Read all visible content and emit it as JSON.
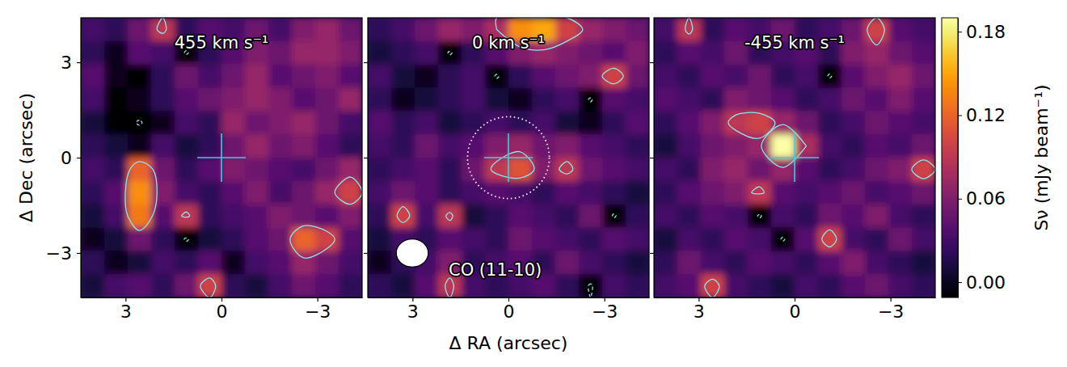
{
  "chart_data": {
    "type": "heatmap",
    "xlabel": "Δ RA (arcsec)",
    "ylabel": "Δ Dec (arcsec)",
    "xlim": [
      4.4,
      -4.4
    ],
    "ylim": [
      -4.4,
      4.4
    ],
    "xticks": [
      3,
      0,
      {
        "value": -3,
        "label": "−3"
      }
    ],
    "yticks": [
      {
        "value": -3,
        "label": "−3"
      },
      0,
      3
    ],
    "x": [
      4.033,
      3.3,
      2.567,
      1.833,
      1.1,
      0.367,
      -0.367,
      -1.1,
      -1.833,
      -2.567,
      -3.3,
      -4.033
    ],
    "y": [
      4.033,
      3.3,
      2.567,
      1.833,
      1.1,
      0.367,
      -0.367,
      -1.1,
      -1.833,
      -2.567,
      -3.3,
      -4.033
    ],
    "colorbar": {
      "label": "Sν (mJy beam⁻¹)",
      "lim": [
        -0.011,
        0.19
      ],
      "ticks": [
        {
          "value": 0,
          "label": "0.00"
        },
        {
          "value": 0.06,
          "label": "0.06"
        },
        {
          "value": 0.12,
          "label": "0.12"
        },
        {
          "value": 0.18,
          "label": "0.18"
        }
      ]
    },
    "contours": [
      {
        "level": 0.08,
        "line_style": "solid",
        "color": "#8fe3ee"
      },
      {
        "level": -0.08,
        "line_style": "dashed",
        "color": "#8fe3ee"
      }
    ],
    "crosshair": {
      "ra": 0,
      "dec": 0,
      "size": 0.76,
      "color": "#30d5e3"
    },
    "panels": [
      {
        "title": "455 km s⁻¹",
        "cells": [
          [
            0.03,
            0.02,
            0.05,
            0.09,
            0.02,
            0.04,
            0.03,
            0.05,
            0.03,
            0.06,
            0.07,
            0.05
          ],
          [
            0.02,
            0.0,
            0.04,
            0.03,
            -0.09,
            0.02,
            0.04,
            0.06,
            0.05,
            0.07,
            0.07,
            0.06
          ],
          [
            0.04,
            0.0,
            -0.02,
            0.02,
            0.05,
            0.03,
            0.05,
            0.07,
            0.04,
            0.05,
            0.06,
            0.04
          ],
          [
            0.03,
            -0.02,
            0.0,
            0.02,
            0.04,
            0.05,
            0.06,
            0.07,
            0.06,
            0.04,
            0.05,
            0.07
          ],
          [
            0.01,
            -0.02,
            -0.09,
            0.0,
            0.03,
            0.02,
            0.07,
            0.05,
            0.06,
            0.07,
            0.05,
            0.03
          ],
          [
            0.02,
            0.01,
            0.0,
            0.03,
            0.01,
            0.02,
            0.05,
            0.07,
            0.05,
            0.06,
            0.04,
            0.02
          ],
          [
            0.03,
            0.02,
            0.12,
            0.05,
            0.02,
            0.04,
            0.06,
            0.05,
            0.04,
            0.03,
            0.05,
            0.07
          ],
          [
            0.02,
            0.04,
            0.14,
            0.06,
            0.03,
            0.02,
            0.04,
            0.06,
            0.03,
            0.05,
            0.07,
            0.1
          ],
          [
            0.01,
            0.03,
            0.13,
            0.04,
            0.09,
            0.02,
            0.03,
            0.04,
            0.06,
            0.05,
            0.04,
            0.06
          ],
          [
            0.0,
            0.01,
            0.05,
            0.02,
            -0.09,
            0.01,
            0.02,
            0.04,
            0.05,
            0.12,
            0.1,
            0.04
          ],
          [
            0.02,
            0.0,
            0.01,
            0.03,
            0.02,
            0.04,
            0.0,
            0.03,
            0.04,
            0.07,
            0.05,
            0.03
          ],
          [
            0.01,
            0.03,
            0.04,
            0.02,
            0.05,
            0.1,
            0.02,
            0.01,
            0.03,
            0.05,
            0.04,
            0.02
          ]
        ]
      },
      {
        "title": "0 km s⁻¹",
        "annotation": "CO (11-10)",
        "aperture": {
          "ra": 0,
          "dec": 0,
          "radius": 1.28
        },
        "beam": {
          "width": 1.0,
          "height": 0.88
        },
        "cells": [
          [
            0.02,
            0.03,
            0.05,
            0.07,
            0.06,
            0.08,
            0.14,
            0.15,
            0.1,
            0.07,
            0.06,
            0.05
          ],
          [
            0.01,
            0.02,
            0.03,
            -0.09,
            0.02,
            0.04,
            0.06,
            0.07,
            0.06,
            0.05,
            0.04,
            0.06
          ],
          [
            0.03,
            0.01,
            0.0,
            0.02,
            0.03,
            -0.09,
            0.02,
            0.04,
            0.05,
            0.06,
            0.1,
            0.05
          ],
          [
            0.02,
            0.0,
            0.01,
            0.02,
            0.03,
            0.01,
            0.0,
            0.02,
            0.03,
            -0.09,
            0.04,
            0.03
          ],
          [
            0.04,
            0.02,
            0.03,
            0.01,
            0.02,
            0.03,
            0.02,
            0.03,
            0.01,
            0.0,
            0.02,
            0.04
          ],
          [
            0.03,
            0.02,
            0.05,
            0.03,
            0.04,
            0.06,
            0.07,
            0.05,
            0.06,
            0.04,
            0.03,
            0.02
          ],
          [
            0.02,
            0.03,
            0.04,
            0.02,
            0.05,
            0.09,
            0.11,
            0.06,
            0.09,
            0.05,
            0.04,
            0.03
          ],
          [
            0.03,
            0.05,
            0.04,
            0.02,
            0.03,
            0.04,
            0.03,
            0.02,
            0.04,
            0.03,
            0.02,
            0.01
          ],
          [
            0.02,
            0.1,
            0.03,
            0.09,
            0.01,
            0.02,
            0.04,
            0.03,
            0.02,
            0.05,
            -0.09,
            0.02
          ],
          [
            0.01,
            0.03,
            0.02,
            0.04,
            0.03,
            0.02,
            0.05,
            0.04,
            0.03,
            0.02,
            0.04,
            0.03
          ],
          [
            0.0,
            0.02,
            0.03,
            0.06,
            0.02,
            0.03,
            0.04,
            0.02,
            0.05,
            0.03,
            0.02,
            0.01
          ],
          [
            0.02,
            0.01,
            0.04,
            0.09,
            0.03,
            0.02,
            0.03,
            0.04,
            0.02,
            -0.09,
            0.03,
            0.02
          ]
        ]
      },
      {
        "title": "-455 km s⁻¹",
        "cells": [
          [
            0.03,
            0.09,
            0.02,
            0.04,
            0.03,
            0.05,
            0.02,
            0.03,
            0.05,
            0.1,
            0.04,
            0.03
          ],
          [
            0.02,
            0.04,
            0.03,
            0.05,
            0.02,
            0.03,
            0.04,
            0.02,
            0.06,
            0.07,
            0.05,
            0.04
          ],
          [
            0.03,
            0.02,
            0.04,
            0.03,
            0.05,
            0.02,
            0.03,
            -0.09,
            0.04,
            0.06,
            0.07,
            0.05
          ],
          [
            0.04,
            0.03,
            0.02,
            0.06,
            0.05,
            0.04,
            0.02,
            0.03,
            0.05,
            0.04,
            0.06,
            0.04
          ],
          [
            0.02,
            0.04,
            0.06,
            0.09,
            0.1,
            0.07,
            0.05,
            0.02,
            0.03,
            0.05,
            0.04,
            0.03
          ],
          [
            0.01,
            0.03,
            0.05,
            0.06,
            0.07,
            0.19,
            0.08,
            0.03,
            0.02,
            0.04,
            0.03,
            0.05
          ],
          [
            0.03,
            0.02,
            0.06,
            0.07,
            0.05,
            0.07,
            0.04,
            0.02,
            0.03,
            0.05,
            0.06,
            0.1
          ],
          [
            0.02,
            0.04,
            0.05,
            0.06,
            0.09,
            0.04,
            0.03,
            0.04,
            0.05,
            0.03,
            0.04,
            0.05
          ],
          [
            0.03,
            0.02,
            0.04,
            0.03,
            -0.09,
            0.03,
            0.02,
            0.05,
            0.04,
            0.06,
            0.03,
            0.02
          ],
          [
            0.01,
            0.03,
            0.02,
            0.04,
            0.03,
            -0.09,
            0.04,
            0.1,
            0.03,
            0.02,
            0.05,
            0.03
          ],
          [
            0.02,
            0.05,
            0.03,
            0.02,
            0.04,
            0.03,
            0.02,
            0.04,
            0.06,
            0.03,
            0.02,
            0.01
          ],
          [
            0.03,
            0.04,
            0.1,
            0.03,
            0.02,
            0.01,
            0.03,
            0.02,
            0.04,
            0.05,
            0.03,
            0.02
          ]
        ]
      }
    ]
  }
}
